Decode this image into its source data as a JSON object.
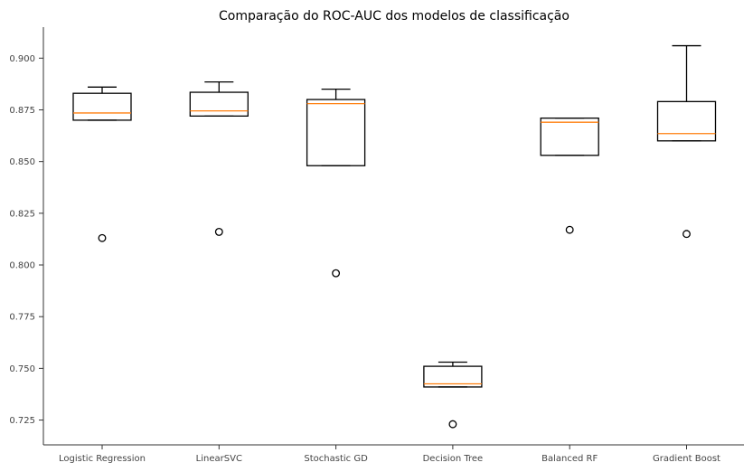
{
  "chart_data": {
    "type": "box",
    "title": "Comparação do ROC-AUC dos modelos de classificação",
    "xlabel": "",
    "ylabel": "",
    "ylim": [
      0.713,
      0.915
    ],
    "yticks": [
      0.725,
      0.75,
      0.775,
      0.8,
      0.825,
      0.85,
      0.875,
      0.9
    ],
    "ytick_labels": [
      "0.725",
      "0.750",
      "0.775",
      "0.800",
      "0.825",
      "0.850",
      "0.875",
      "0.900"
    ],
    "grid": false,
    "colors": {
      "box": "#000000",
      "median": "#ff7f0e"
    },
    "categories": [
      "Logistic Regression",
      "LinearSVC",
      "Stochastic GD",
      "Decision Tree",
      "Balanced RF",
      "Gradient Boost"
    ],
    "boxes": [
      {
        "whislo": 0.87,
        "q1": 0.87,
        "med": 0.8735,
        "q3": 0.883,
        "whishi": 0.886,
        "fliers": [
          0.813
        ]
      },
      {
        "whislo": 0.872,
        "q1": 0.872,
        "med": 0.8745,
        "q3": 0.8835,
        "whishi": 0.8885,
        "fliers": [
          0.816
        ]
      },
      {
        "whislo": 0.848,
        "q1": 0.848,
        "med": 0.878,
        "q3": 0.88,
        "whishi": 0.885,
        "fliers": [
          0.796
        ]
      },
      {
        "whislo": 0.741,
        "q1": 0.741,
        "med": 0.7425,
        "q3": 0.751,
        "whishi": 0.753,
        "fliers": [
          0.723
        ]
      },
      {
        "whislo": 0.853,
        "q1": 0.853,
        "med": 0.869,
        "q3": 0.871,
        "whishi": 0.871,
        "fliers": [
          0.817
        ]
      },
      {
        "whislo": 0.86,
        "q1": 0.86,
        "med": 0.8635,
        "q3": 0.879,
        "whishi": 0.906,
        "fliers": [
          0.815
        ]
      }
    ]
  }
}
